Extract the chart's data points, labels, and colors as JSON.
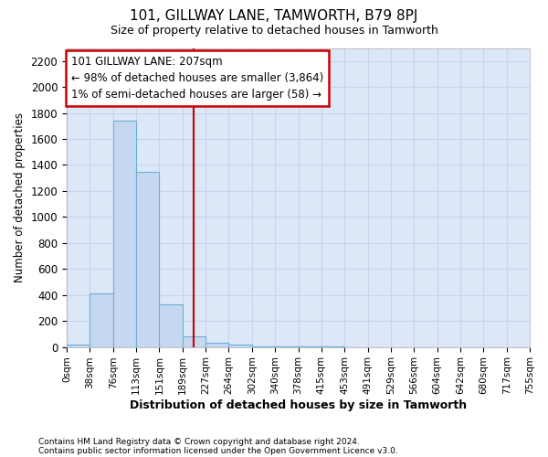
{
  "title": "101, GILLWAY LANE, TAMWORTH, B79 8PJ",
  "subtitle": "Size of property relative to detached houses in Tamworth",
  "xlabel": "Distribution of detached houses by size in Tamworth",
  "ylabel": "Number of detached properties",
  "bin_labels": [
    "0sqm",
    "38sqm",
    "76sqm",
    "113sqm",
    "151sqm",
    "189sqm",
    "227sqm",
    "264sqm",
    "302sqm",
    "340sqm",
    "378sqm",
    "415sqm",
    "453sqm",
    "491sqm",
    "529sqm",
    "566sqm",
    "604sqm",
    "642sqm",
    "680sqm",
    "717sqm",
    "755sqm"
  ],
  "bar_heights": [
    20,
    410,
    1740,
    1350,
    330,
    80,
    30,
    20,
    5,
    2,
    1,
    1,
    0,
    0,
    0,
    0,
    0,
    0,
    0,
    0
  ],
  "bar_color": "#c5d8f0",
  "bar_edge_color": "#6baed6",
  "property_label": "101 GILLWAY LANE: 207sqm",
  "annotation_line1": "← 98% of detached houses are smaller (3,864)",
  "annotation_line2": "1% of semi-detached houses are larger (58) →",
  "red_line_color": "#cc0000",
  "ylim": [
    0,
    2300
  ],
  "yticks": [
    0,
    200,
    400,
    600,
    800,
    1000,
    1200,
    1400,
    1600,
    1800,
    2000,
    2200
  ],
  "grid_color": "#c8d4e8",
  "bg_color": "#dce8f8",
  "footnote1": "Contains HM Land Registry data © Crown copyright and database right 2024.",
  "footnote2": "Contains public sector information licensed under the Open Government Licence v3.0."
}
